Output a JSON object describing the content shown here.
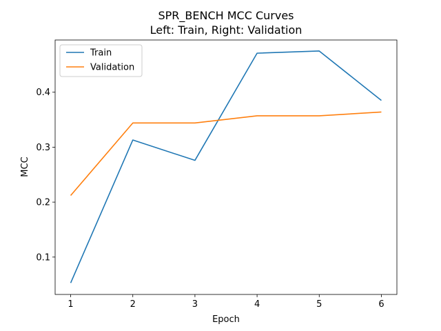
{
  "chart_data": {
    "type": "line",
    "title": "SPR_BENCH MCC Curves",
    "subtitle": "Left: Train, Right: Validation",
    "xlabel": "Epoch",
    "ylabel": "MCC",
    "x": [
      1,
      2,
      3,
      4,
      5,
      6
    ],
    "xlim": [
      0.75,
      6.25
    ],
    "ylim": [
      0.032,
      0.495
    ],
    "xticks": [
      "1",
      "2",
      "3",
      "4",
      "5",
      "6"
    ],
    "yticks": [
      "0.1",
      "0.2",
      "0.3",
      "0.4"
    ],
    "ytick_values": [
      0.1,
      0.2,
      0.3,
      0.4
    ],
    "grid": false,
    "legend_position": "top-left",
    "series": [
      {
        "name": "Train",
        "color": "#1f77b4",
        "values": [
          0.053,
          0.313,
          0.276,
          0.471,
          0.475,
          0.385
        ]
      },
      {
        "name": "Validation",
        "color": "#ff7f0e",
        "values": [
          0.212,
          0.344,
          0.344,
          0.357,
          0.357,
          0.364
        ]
      }
    ]
  }
}
